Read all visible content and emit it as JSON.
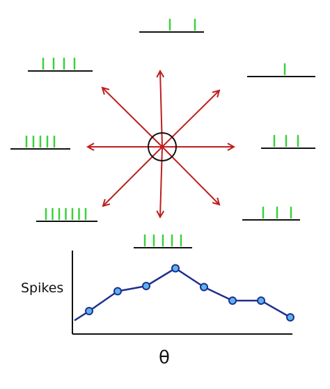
{
  "colors": {
    "arrow": "#c01d1d",
    "spike": "#3bd13b",
    "baseline": "#111111",
    "curve": "#1f2f8f",
    "point_fill": "#5ab4ef",
    "point_stroke": "#1f2f8f",
    "axis": "#111111"
  },
  "labels": {
    "y_axis": "Spikes",
    "x_axis": "θ"
  },
  "directions": [
    {
      "name": "up",
      "spikes": 2
    },
    {
      "name": "up-right",
      "spikes": 1
    },
    {
      "name": "right",
      "spikes": 3
    },
    {
      "name": "down-right",
      "spikes": 3
    },
    {
      "name": "down",
      "spikes": 5
    },
    {
      "name": "down-left",
      "spikes": 7
    },
    {
      "name": "left",
      "spikes": 5
    },
    {
      "name": "up-left",
      "spikes": 4
    }
  ],
  "chart_data": {
    "type": "line",
    "xlabel": "θ",
    "ylabel": "Spikes",
    "y": [
      2.2,
      4.1,
      4.6,
      6.3,
      4.5,
      3.2,
      3.2,
      1.6
    ],
    "ylim": [
      0,
      8
    ],
    "grid": false,
    "legend": "none"
  }
}
